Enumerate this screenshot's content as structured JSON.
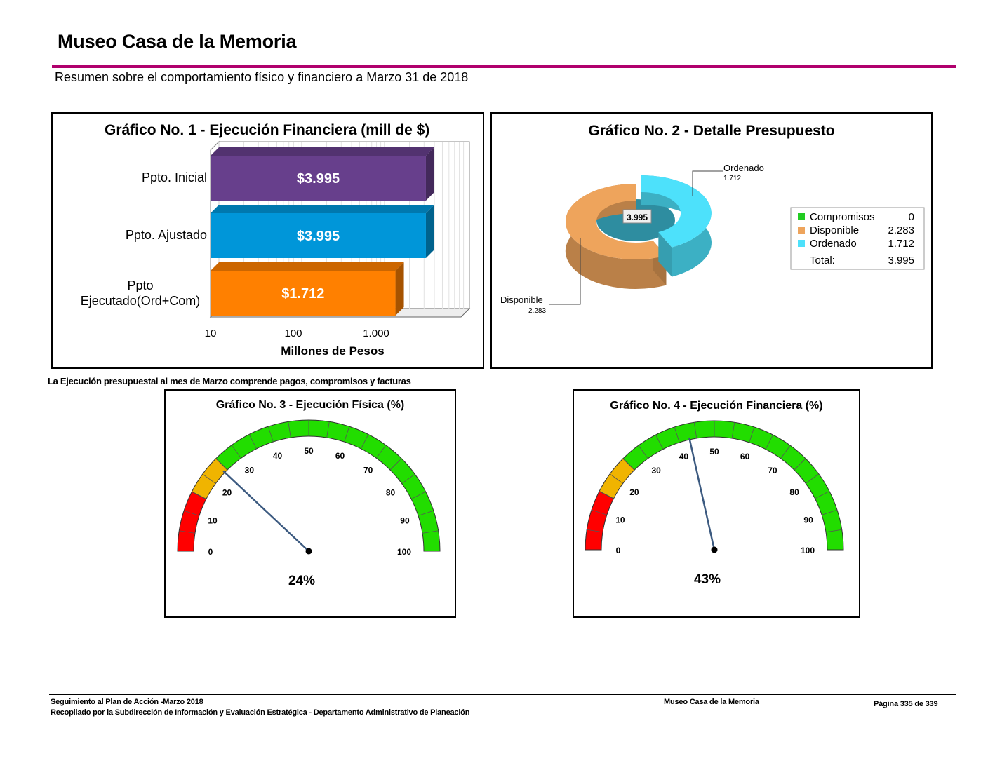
{
  "header": {
    "title": "Museo Casa de la Memoria",
    "subtitle": "Resumen sobre el comportamiento físico y financiero a Marzo 31 de 2018"
  },
  "note": "La Ejecución presupuestal al mes de Marzo comprende pagos, compromisos y facturas",
  "footer": {
    "line1": "Seguimiento al Plan de Acción -Marzo 2018",
    "line2": "Recopilado por la Subdirección de Información y Evaluación Estratégica - Departamento Administrativo de Planeación",
    "center": "Museo Casa de la Memoria",
    "page": "Página 335 de 339"
  },
  "chart_data": [
    {
      "type": "bar",
      "orientation": "horizontal",
      "title": "Gráfico No. 1 - Ejecución Financiera (mill de $)",
      "xlabel": "Millones de Pesos",
      "xscale": "log",
      "xticks": [
        "10",
        "100",
        "1.000"
      ],
      "categories": [
        "Ppto. Inicial",
        "Ppto. Ajustado",
        "Ppto Ejecutado(Ord+Com)"
      ],
      "values": [
        3995,
        3995,
        1712
      ],
      "data_labels": [
        "$3.995",
        "$3.995",
        "$1.712"
      ],
      "colors": [
        "#673f8c",
        "#0096d9",
        "#ff8000"
      ]
    },
    {
      "type": "pie",
      "style": "3d-doughnut",
      "title": "Gráfico No. 2 - Detalle Presupuesto",
      "center_label": "3.995",
      "legend": {
        "position": "right",
        "items": [
          {
            "name": "Compromisos",
            "value": "0",
            "color": "#22cc22"
          },
          {
            "name": "Disponible",
            "value": "2.283",
            "color": "#eea45c"
          },
          {
            "name": "Ordenado",
            "value": "1.712",
            "color": "#4de1fb"
          }
        ],
        "total_label": "Total:",
        "total_value": "3.995"
      },
      "slices": [
        {
          "name": "Disponible",
          "value": 2283,
          "label_value": "2.283"
        },
        {
          "name": "Ordenado",
          "value": 1712,
          "label_value": "1.712"
        }
      ]
    },
    {
      "type": "gauge",
      "title": "Gráfico No. 3 -  Ejecución Física (%)",
      "value": 24,
      "value_label": "24%",
      "range": [
        0,
        100
      ],
      "ticks": [
        "0",
        "10",
        "20",
        "30",
        "40",
        "50",
        "60",
        "70",
        "80",
        "90",
        "100"
      ],
      "bands": [
        {
          "from": 0,
          "to": 15,
          "color": "#ff0000"
        },
        {
          "from": 15,
          "to": 25,
          "color": "#f0b400"
        },
        {
          "from": 25,
          "to": 100,
          "color": "#22dd00"
        }
      ]
    },
    {
      "type": "gauge",
      "title": "Gráfico No. 4 -  Ejecución Financiera (%)",
      "value": 43,
      "value_label": "43%",
      "range": [
        0,
        100
      ],
      "ticks": [
        "0",
        "10",
        "20",
        "30",
        "40",
        "50",
        "60",
        "70",
        "80",
        "90",
        "100"
      ],
      "bands": [
        {
          "from": 0,
          "to": 15,
          "color": "#ff0000"
        },
        {
          "from": 15,
          "to": 25,
          "color": "#f0b400"
        },
        {
          "from": 25,
          "to": 100,
          "color": "#22dd00"
        }
      ]
    }
  ]
}
